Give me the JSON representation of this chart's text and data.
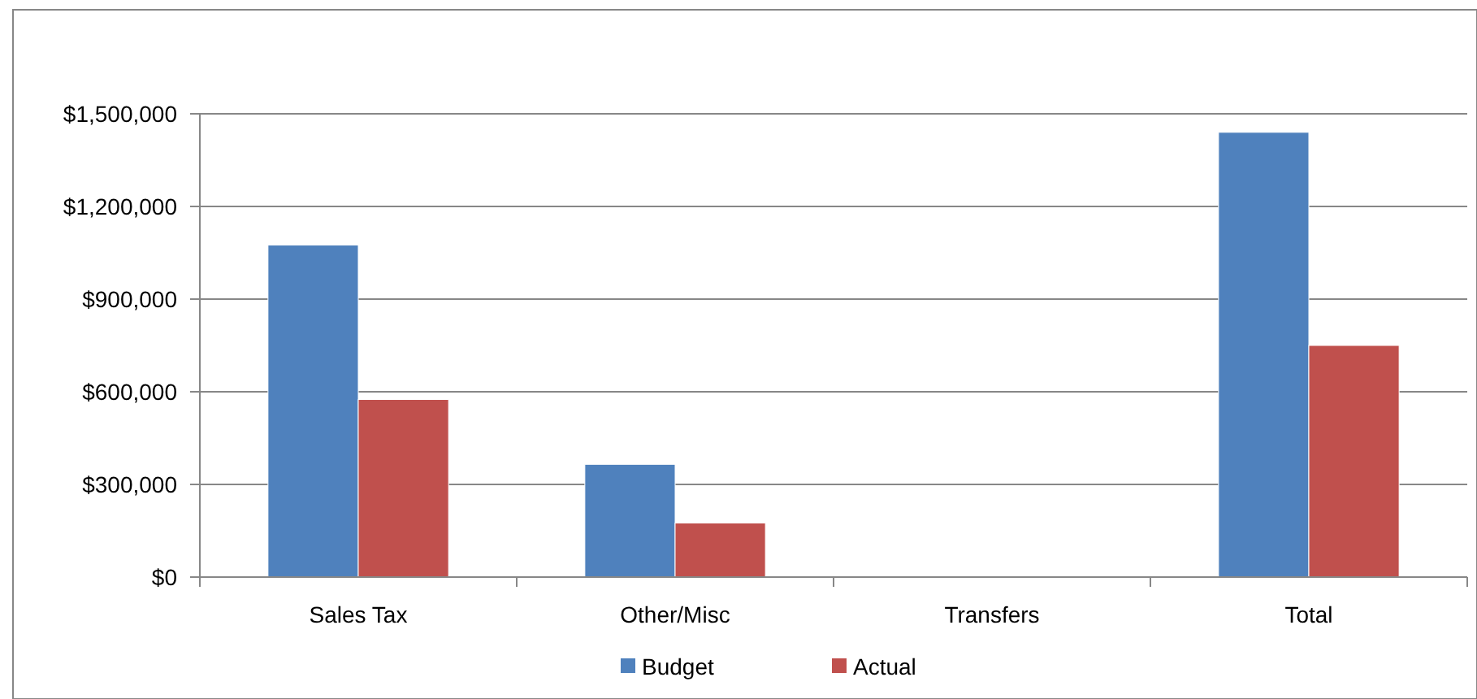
{
  "chart_data": {
    "type": "bar",
    "categories": [
      "Sales Tax",
      "Other/Misc",
      "Transfers",
      "Total"
    ],
    "series": [
      {
        "name": "Budget",
        "color": "#4f81bd",
        "values": [
          1075000,
          365000,
          0,
          1440000
        ]
      },
      {
        "name": "Actual",
        "color": "#c0504d",
        "values": [
          575000,
          175000,
          0,
          750000
        ]
      }
    ],
    "ylim": [
      0,
      1500000
    ],
    "yticks": [
      {
        "value": 0,
        "label": "$0"
      },
      {
        "value": 300000,
        "label": "$300,000"
      },
      {
        "value": 600000,
        "label": "$600,000"
      },
      {
        "value": 900000,
        "label": "$900,000"
      },
      {
        "value": 1200000,
        "label": "$1,200,000"
      },
      {
        "value": 1500000,
        "label": "$1,500,000"
      }
    ],
    "grid": "y",
    "legend": "bottom"
  }
}
